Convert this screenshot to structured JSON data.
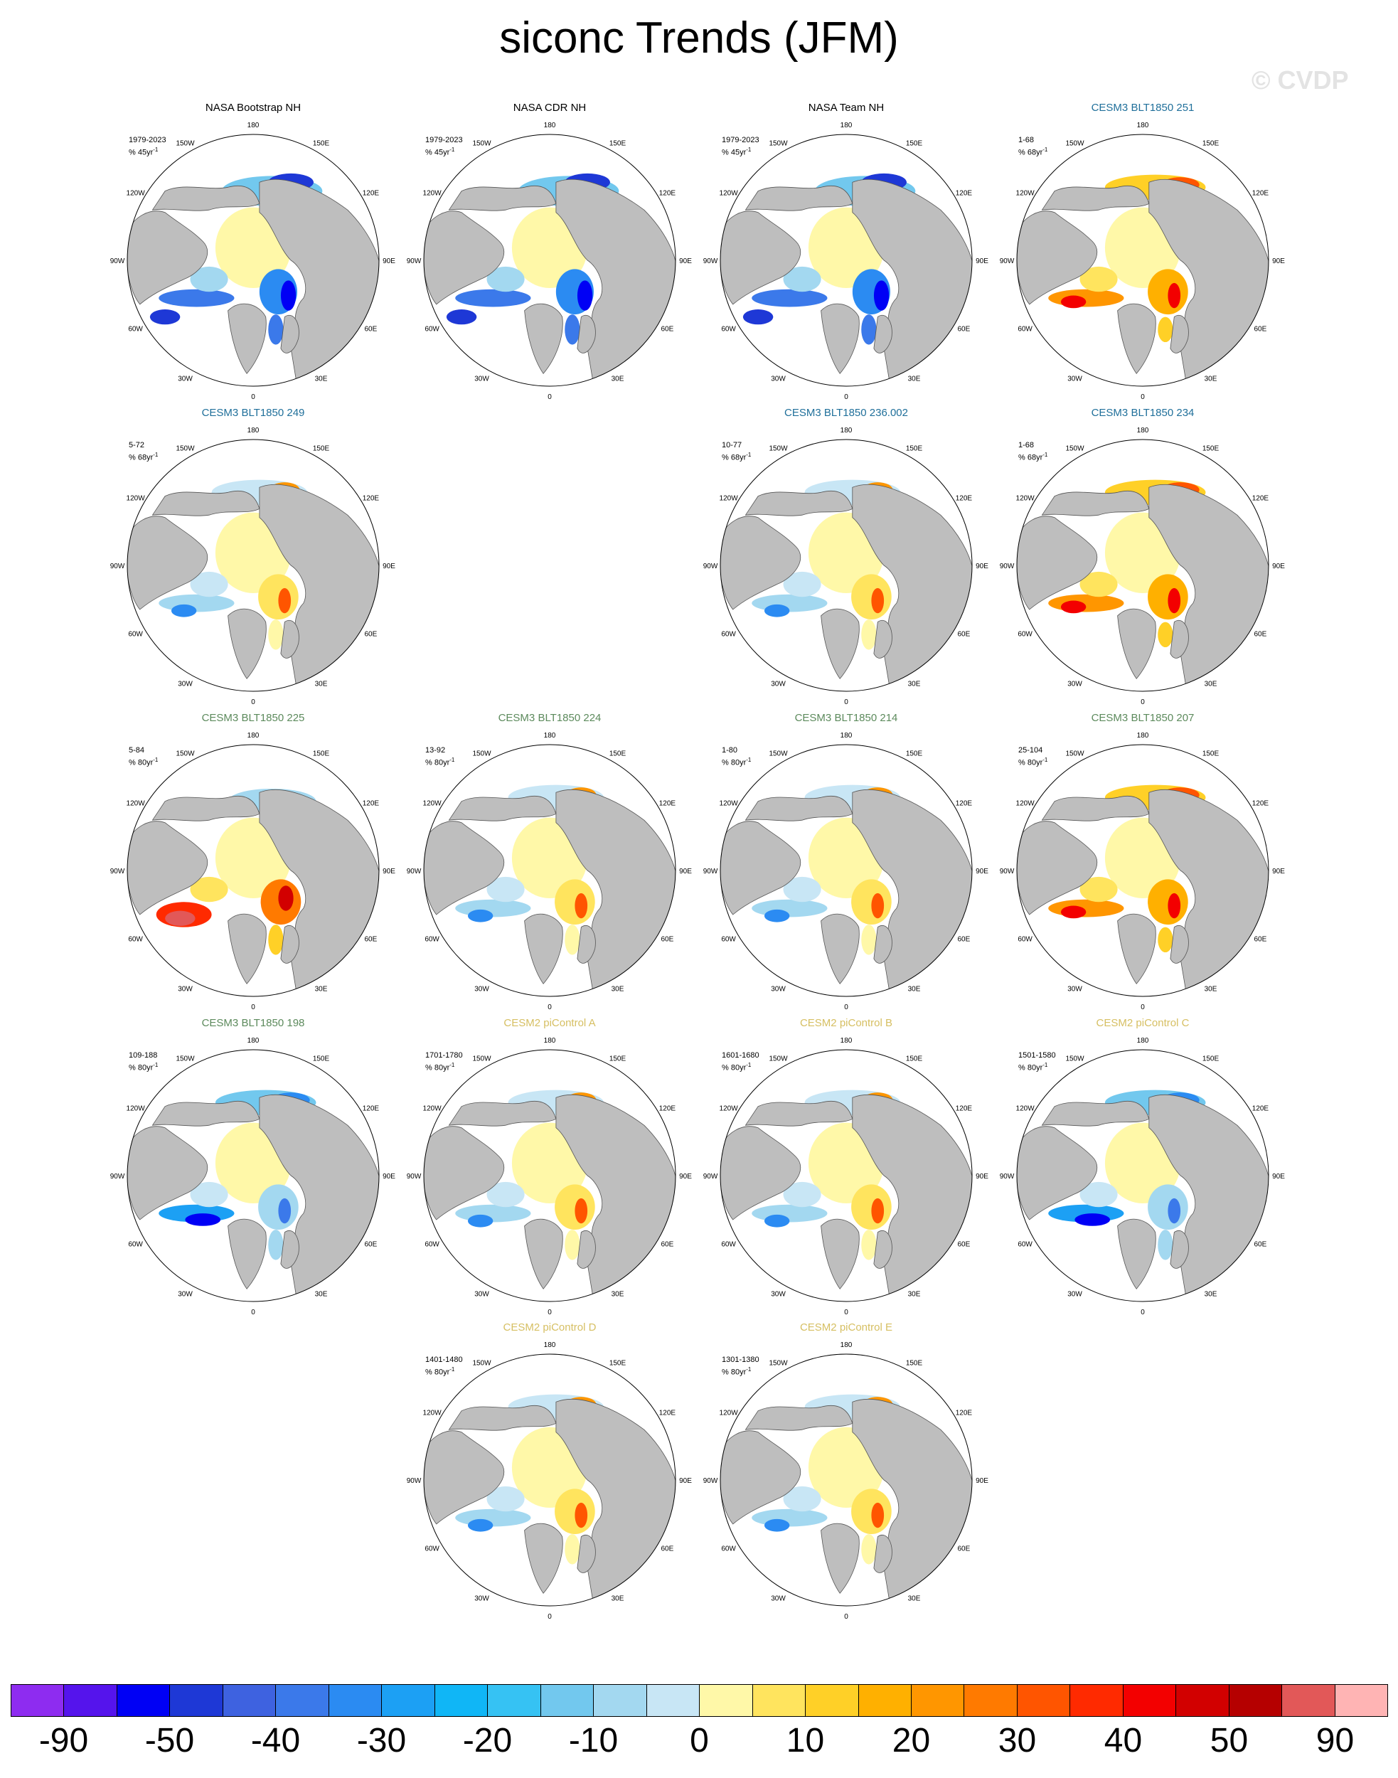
{
  "title": "siconc Trends (JFM)",
  "watermark": "© CVDP",
  "lon_labels": [
    "180",
    "150E",
    "120E",
    "90E",
    "60E",
    "30E",
    "0",
    "30W",
    "60W",
    "90W",
    "120W",
    "150W"
  ],
  "colors": {
    "land": "#bebebe",
    "palette": [
      "#8e2cf0",
      "#5514ec",
      "#0000f5",
      "#1e38d6",
      "#3e62e0",
      "#3b79ea",
      "#2b8bf2",
      "#1ca0f4",
      "#10b6f6",
      "#36c2f3",
      "#72c8ee",
      "#a3d8f0",
      "#c8e6f5",
      "#fff8a8",
      "#ffe45e",
      "#ffd027",
      "#ffb000",
      "#ff9600",
      "#ff7a00",
      "#ff5500",
      "#ff2a00",
      "#f30000",
      "#d20000",
      "#b50000",
      "#e25858",
      "#ffb4b4"
    ]
  },
  "colorbar": {
    "labels": [
      {
        "text": "-90",
        "index": 1
      },
      {
        "text": "-50",
        "index": 3
      },
      {
        "text": "-40",
        "index": 5
      },
      {
        "text": "-30",
        "index": 7
      },
      {
        "text": "-20",
        "index": 9
      },
      {
        "text": "-10",
        "index": 11
      },
      {
        "text": "0",
        "index": 13
      },
      {
        "text": "10",
        "index": 15
      },
      {
        "text": "20",
        "index": 17
      },
      {
        "text": "30",
        "index": 19
      },
      {
        "text": "40",
        "index": 21
      },
      {
        "text": "50",
        "index": 23
      },
      {
        "text": "90",
        "index": 25
      }
    ]
  },
  "panels": [
    {
      "row": 0,
      "col": 0,
      "title": "NASA Bootstrap NH",
      "title_color": "#000000",
      "range": "1979-2023",
      "units": "% 45yr",
      "theme": "obs"
    },
    {
      "row": 0,
      "col": 1,
      "title": "NASA CDR NH",
      "title_color": "#000000",
      "range": "1979-2023",
      "units": "% 45yr",
      "theme": "obs"
    },
    {
      "row": 0,
      "col": 2,
      "title": "NASA Team NH",
      "title_color": "#000000",
      "range": "1979-2023",
      "units": "% 45yr",
      "theme": "obs"
    },
    {
      "row": 0,
      "col": 3,
      "title": "CESM3 BLT1850 251",
      "title_color": "#1f6f9a",
      "range": "1-68",
      "units": "% 68yr",
      "theme": "warm"
    },
    {
      "row": 1,
      "col": 0,
      "title": "CESM3 BLT1850 249",
      "title_color": "#1f6f9a",
      "range": "5-72",
      "units": "% 68yr",
      "theme": "mixed"
    },
    {
      "row": 1,
      "col": 2,
      "title": "CESM3 BLT1850 236.002",
      "title_color": "#1f6f9a",
      "range": "10-77",
      "units": "% 68yr",
      "theme": "mixed"
    },
    {
      "row": 1,
      "col": 3,
      "title": "CESM3 BLT1850 234",
      "title_color": "#1f6f9a",
      "range": "1-68",
      "units": "% 68yr",
      "theme": "warm"
    },
    {
      "row": 2,
      "col": 0,
      "title": "CESM3 BLT1850 225",
      "title_color": "#5c8a5c",
      "range": "5-84",
      "units": "% 80yr",
      "theme": "hot"
    },
    {
      "row": 2,
      "col": 1,
      "title": "CESM3 BLT1850 224",
      "title_color": "#5c8a5c",
      "range": "13-92",
      "units": "% 80yr",
      "theme": "mixed"
    },
    {
      "row": 2,
      "col": 2,
      "title": "CESM3 BLT1850 214",
      "title_color": "#5c8a5c",
      "range": "1-80",
      "units": "% 80yr",
      "theme": "mixed"
    },
    {
      "row": 2,
      "col": 3,
      "title": "CESM3 BLT1850 207",
      "title_color": "#5c8a5c",
      "range": "25-104",
      "units": "% 80yr",
      "theme": "warm"
    },
    {
      "row": 3,
      "col": 0,
      "title": "CESM3 BLT1850 198",
      "title_color": "#5c8a5c",
      "range": "109-188",
      "units": "% 80yr",
      "theme": "cold"
    },
    {
      "row": 3,
      "col": 1,
      "title": "CESM2 piControl A",
      "title_color": "#d6bf62",
      "range": "1701-1780",
      "units": "% 80yr",
      "theme": "mixed"
    },
    {
      "row": 3,
      "col": 2,
      "title": "CESM2 piControl B",
      "title_color": "#d6bf62",
      "range": "1601-1680",
      "units": "% 80yr",
      "theme": "mixed"
    },
    {
      "row": 3,
      "col": 3,
      "title": "CESM2 piControl C",
      "title_color": "#d6bf62",
      "range": "1501-1580",
      "units": "% 80yr",
      "theme": "cold"
    },
    {
      "row": 4,
      "col": 1,
      "title": "CESM2 piControl D",
      "title_color": "#d6bf62",
      "range": "1401-1480",
      "units": "% 80yr",
      "theme": "mixed"
    },
    {
      "row": 4,
      "col": 2,
      "title": "CESM2 piControl E",
      "title_color": "#d6bf62",
      "range": "1301-1380",
      "units": "% 80yr",
      "theme": "mixed"
    }
  ]
}
